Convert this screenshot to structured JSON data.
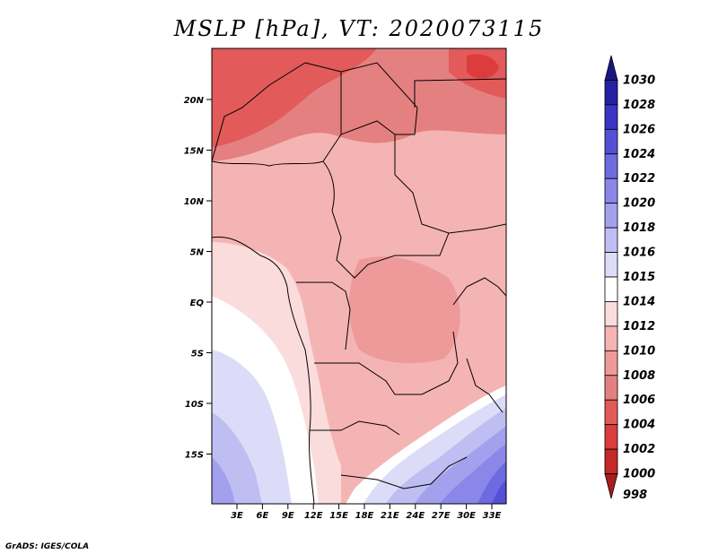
{
  "title": "MSLP [hPa], VT: 2020073115",
  "credit": "GrADS: IGES/COLA",
  "map": {
    "lat_labels": [
      "20N",
      "15N",
      "10N",
      "5N",
      "EQ",
      "5S",
      "10S",
      "15S"
    ],
    "lon_labels": [
      "3E",
      "6E",
      "9E",
      "12E",
      "15E",
      "18E",
      "21E",
      "24E",
      "27E",
      "30E",
      "33E"
    ]
  },
  "colorbar": {
    "levels": [
      "1030",
      "1028",
      "1026",
      "1024",
      "1022",
      "1020",
      "1018",
      "1016",
      "1015",
      "1014",
      "1012",
      "1010",
      "1008",
      "1006",
      "1004",
      "1002",
      "1000",
      "998"
    ],
    "colors": [
      "#1a1780",
      "#2420a3",
      "#3a34c4",
      "#5450d6",
      "#6e6be0",
      "#8a87e8",
      "#a3a1ee",
      "#bfbef3",
      "#dcdcf9",
      "#ffffff",
      "#fbdcdc",
      "#f5b4b4",
      "#ee9a9a",
      "#e58080",
      "#e25a5a",
      "#dc3c3c",
      "#c42828",
      "#a81e1e"
    ]
  }
}
